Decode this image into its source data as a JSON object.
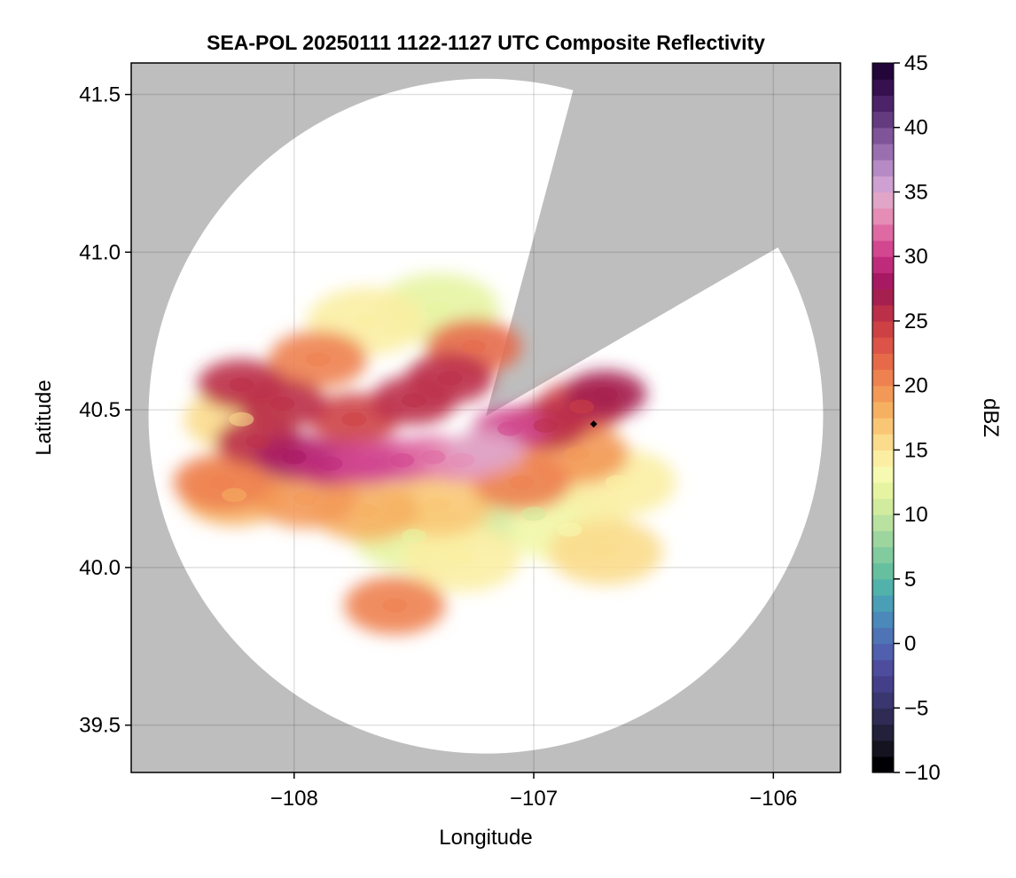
{
  "chart_data": {
    "type": "heatmap",
    "title": "SEA-POL 20250111 1122-1127 UTC Composite Reflectivity",
    "xlabel": "Longitude",
    "ylabel": "Latitude",
    "xlim": [
      -108.68,
      -105.72
    ],
    "ylim": [
      39.35,
      41.6
    ],
    "x_ticks": [
      -108,
      -107,
      -106
    ],
    "x_tick_labels": [
      "−108",
      "−107",
      "−106"
    ],
    "y_ticks": [
      39.5,
      40.0,
      40.5,
      41.0,
      41.5
    ],
    "y_tick_labels": [
      "39.5",
      "40.0",
      "40.5",
      "41.0",
      "41.5"
    ],
    "grid": true,
    "colormap": "Spectral (reversed), discrete levels",
    "missing_color": "#bebebe",
    "no_echo_color": "#ffffff",
    "radar_location": {
      "lon": -107.2,
      "lat": 40.48
    },
    "radar_range_deg_lat": 1.07,
    "blocked_sectors_deg_from_north": [
      [
        15,
        60
      ]
    ],
    "marker": {
      "lon": -106.75,
      "lat": 40.455,
      "shape": "diamond",
      "color": "#000000"
    },
    "reflectivity_cells": [
      {
        "lon": -107.2,
        "lat": 40.37,
        "dBZ": 34
      },
      {
        "lon": -107.3,
        "lat": 40.34,
        "dBZ": 33
      },
      {
        "lon": -107.42,
        "lat": 40.35,
        "dBZ": 32
      },
      {
        "lon": -107.55,
        "lat": 40.34,
        "dBZ": 31
      },
      {
        "lon": -107.7,
        "lat": 40.33,
        "dBZ": 30
      },
      {
        "lon": -107.85,
        "lat": 40.33,
        "dBZ": 29
      },
      {
        "lon": -108.0,
        "lat": 40.35,
        "dBZ": 28
      },
      {
        "lon": -108.15,
        "lat": 40.4,
        "dBZ": 26
      },
      {
        "lon": -108.22,
        "lat": 40.58,
        "dBZ": 25
      },
      {
        "lon": -108.05,
        "lat": 40.52,
        "dBZ": 25
      },
      {
        "lon": -107.75,
        "lat": 40.47,
        "dBZ": 24
      },
      {
        "lon": -107.5,
        "lat": 40.53,
        "dBZ": 26
      },
      {
        "lon": -107.35,
        "lat": 40.6,
        "dBZ": 25
      },
      {
        "lon": -107.25,
        "lat": 40.7,
        "dBZ": 22
      },
      {
        "lon": -107.9,
        "lat": 40.66,
        "dBZ": 21
      },
      {
        "lon": -107.1,
        "lat": 40.44,
        "dBZ": 30
      },
      {
        "lon": -106.95,
        "lat": 40.45,
        "dBZ": 26
      },
      {
        "lon": -106.8,
        "lat": 40.51,
        "dBZ": 24
      },
      {
        "lon": -106.7,
        "lat": 40.55,
        "dBZ": 27
      },
      {
        "lon": -106.82,
        "lat": 40.36,
        "dBZ": 19
      },
      {
        "lon": -107.05,
        "lat": 40.27,
        "dBZ": 21
      },
      {
        "lon": -107.4,
        "lat": 40.2,
        "dBZ": 17
      },
      {
        "lon": -107.7,
        "lat": 40.18,
        "dBZ": 18
      },
      {
        "lon": -107.95,
        "lat": 40.22,
        "dBZ": 19
      },
      {
        "lon": -108.25,
        "lat": 40.23,
        "dBZ": 18
      },
      {
        "lon": -107.5,
        "lat": 40.1,
        "dBZ": 12
      },
      {
        "lon": -107.0,
        "lat": 40.17,
        "dBZ": 11
      },
      {
        "lon": -106.85,
        "lat": 40.12,
        "dBZ": 13
      },
      {
        "lon": -107.3,
        "lat": 40.03,
        "dBZ": 14
      },
      {
        "lon": -107.7,
        "lat": 40.78,
        "dBZ": 14
      },
      {
        "lon": -107.4,
        "lat": 40.82,
        "dBZ": 12
      },
      {
        "lon": -108.22,
        "lat": 40.47,
        "dBZ": 15
      },
      {
        "lon": -107.58,
        "lat": 39.88,
        "dBZ": 20
      },
      {
        "lon": -106.65,
        "lat": 40.27,
        "dBZ": 14
      },
      {
        "lon": -106.7,
        "lat": 40.05,
        "dBZ": 15
      },
      {
        "lon": -108.3,
        "lat": 40.27,
        "dBZ": 21
      }
    ],
    "colorbar": {
      "label": "dBZ",
      "range": [
        -10,
        45
      ],
      "ticks": [
        -10,
        -5,
        0,
        5,
        10,
        15,
        20,
        25,
        30,
        35,
        40,
        45
      ],
      "tick_labels": [
        "−10",
        "−5",
        "0",
        "5",
        "10",
        "15",
        "20",
        "25",
        "30",
        "35",
        "40",
        "45"
      ],
      "colors": [
        "#000004",
        "#14131f",
        "#22203a",
        "#2e2c55",
        "#3a3670",
        "#453f8a",
        "#4d4c9d",
        "#5060ae",
        "#4f74b6",
        "#4a89ba",
        "#4a9fb6",
        "#50b2ab",
        "#66c09f",
        "#82cb9f",
        "#9dd59f",
        "#b9e1a0",
        "#d1eb9f",
        "#e6f4a1",
        "#f5fab0",
        "#fbeea3",
        "#fbdc8c",
        "#f9c675",
        "#f6b062",
        "#f39958",
        "#ee8150",
        "#e66a4a",
        "#db5447",
        "#cd4145",
        "#bb2f49",
        "#a5204f",
        "#a81963",
        "#be2b7b",
        "#d2478f",
        "#df6aa3",
        "#e58db5",
        "#e0a5c7",
        "#cfa0d2",
        "#b58ac5",
        "#9a6fb0",
        "#7f5498",
        "#653b80",
        "#4c2368",
        "#36104f",
        "#220639"
      ]
    }
  }
}
